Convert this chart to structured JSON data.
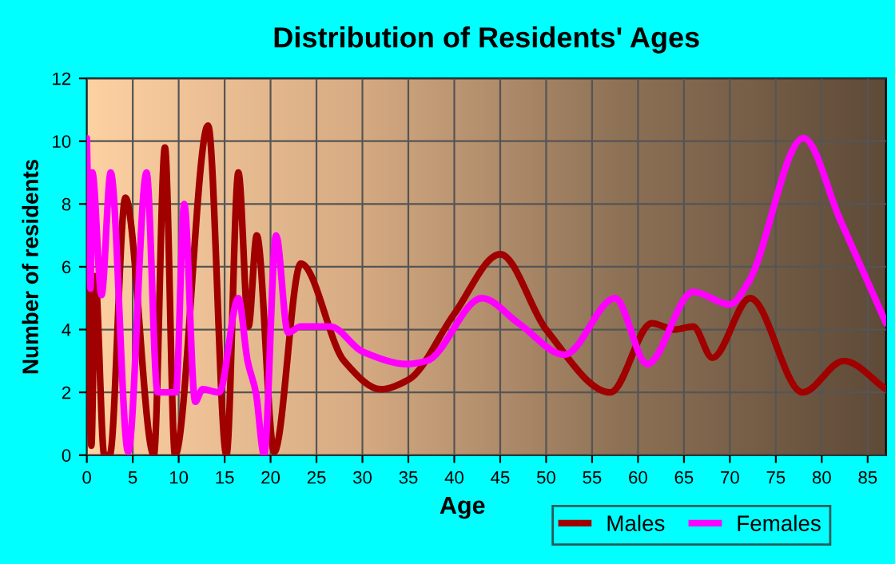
{
  "chart_data": {
    "type": "line",
    "title": "Distribution of Residents' Ages",
    "xlabel": "Age",
    "ylabel": "Number of residents",
    "xlim": [
      0,
      87
    ],
    "xticks": [
      0,
      5,
      10,
      15,
      20,
      25,
      30,
      35,
      40,
      45,
      50,
      55,
      60,
      65,
      70,
      75,
      80,
      85
    ],
    "ylim": [
      0,
      12
    ],
    "yticks": [
      0,
      2,
      4,
      6,
      8,
      10,
      12
    ],
    "grid": true,
    "legend": "bottom right",
    "series": [
      {
        "name": "Males",
        "color": "#a00000",
        "x": [
          0,
          0.5,
          0.9,
          1.9,
          2.5,
          4.2,
          7.3,
          8.5,
          9.6,
          13.2,
          15.2,
          16.5,
          17.6,
          18.5,
          20.4,
          23.3,
          28,
          32,
          35,
          40,
          45,
          50,
          57,
          61.5,
          64,
          66,
          68.1,
          72.2,
          77.9,
          82.4,
          87
        ],
        "values": [
          7.1,
          0.3,
          5.7,
          0,
          0,
          8.2,
          0,
          9.8,
          0,
          10.5,
          0,
          9,
          4.1,
          7,
          0.1,
          6.1,
          3,
          2.1,
          2.4,
          4.5,
          6.4,
          4,
          2,
          4.2,
          4,
          4.1,
          3.1,
          5,
          2,
          3,
          2.1
        ]
      },
      {
        "name": "Females",
        "color": "#ff00ff",
        "x": [
          0,
          0.4,
          0.6,
          1.6,
          2.6,
          4.5,
          6.5,
          7.7,
          9.7,
          10.6,
          11.8,
          12.6,
          14.4,
          16.5,
          17.5,
          18.4,
          19.3,
          20.6,
          21.9,
          23.3,
          26.5,
          30,
          35,
          37,
          43,
          47,
          52,
          57.5,
          61,
          66,
          70,
          72,
          78,
          82,
          87
        ],
        "values": [
          10.1,
          5.3,
          9,
          5.1,
          9,
          0.1,
          9,
          2,
          2,
          8,
          1.7,
          2.1,
          2,
          5,
          3,
          2,
          0,
          7,
          3.9,
          4.1,
          4.1,
          3.3,
          2.9,
          3,
          5,
          4.2,
          3.2,
          5,
          2.9,
          5.2,
          4.8,
          5.5,
          10.1,
          7.5,
          4.2
        ]
      }
    ]
  }
}
